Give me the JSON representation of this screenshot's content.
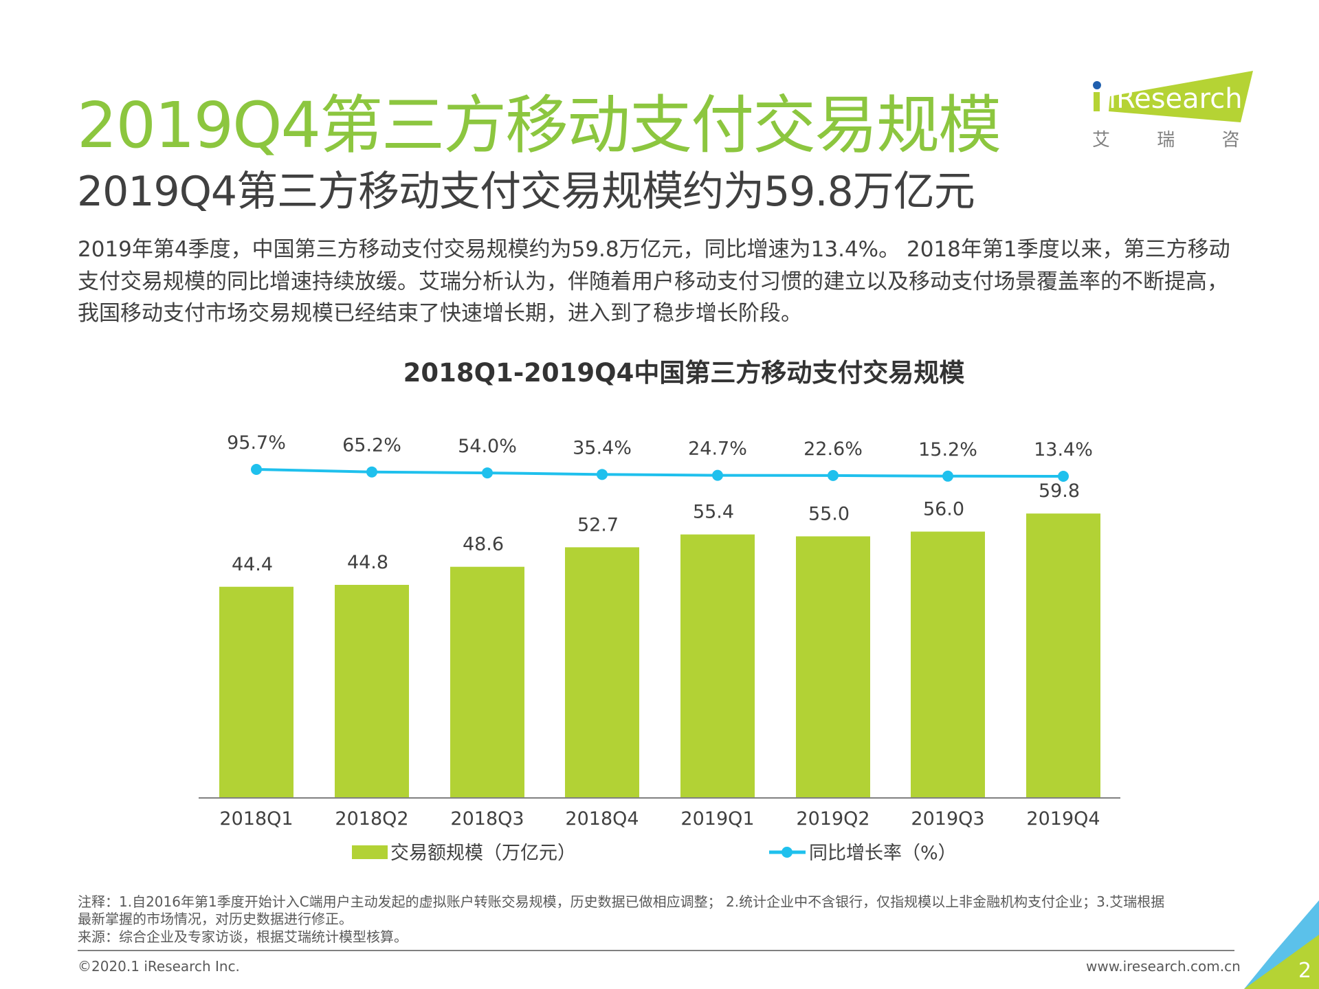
{
  "header": {
    "title": "2019Q4第三方移动支付交易规模",
    "subtitle": "2019Q4第三方移动支付交易规模约为59.8万亿元",
    "logo": {
      "brand": "iResearch",
      "cn": "艾 瑞 咨 询"
    }
  },
  "body": [
    "2019年第4季度，中国第三方移动支付交易规模约为59.8万亿元，同比增速为13.4%。 2018年第1季度以来，第三方移动",
    "支付交易规模的同比增速持续放缓。艾瑞分析认为，伴随着用户移动支付习惯的建立以及移动支付场景覆盖率的不断提高，",
    "我国移动支付市场交易规模已经结束了快速增长期，进入到了稳步增长阶段。"
  ],
  "chart_data": {
    "type": "bar",
    "title": "2018Q1-2019Q4中国第三方移动支付交易规模",
    "categories": [
      "2018Q1",
      "2018Q2",
      "2018Q3",
      "2018Q4",
      "2019Q1",
      "2019Q2",
      "2019Q3",
      "2019Q4"
    ],
    "series": [
      {
        "name": "交易额规模（万亿元）",
        "type": "bar",
        "values": [
          44.4,
          44.8,
          48.6,
          52.7,
          55.4,
          55.0,
          56.0,
          59.8
        ],
        "labels": [
          "44.4",
          "44.8",
          "48.6",
          "52.7",
          "55.4",
          "55.0",
          "56.0",
          "59.8"
        ],
        "color": "#b2d235"
      },
      {
        "name": "同比增长率（%）",
        "type": "line",
        "values": [
          95.7,
          65.2,
          54.0,
          35.4,
          24.7,
          22.6,
          15.2,
          13.4
        ],
        "labels": [
          "95.7%",
          "65.2%",
          "54.0%",
          "35.4%",
          "24.7%",
          "22.6%",
          "15.2%",
          "13.4%"
        ],
        "color": "#1fc0ed"
      }
    ],
    "legend": "bottom",
    "grid": false
  },
  "notes": [
    "注释：1.自2016年第1季度开始计入C端用户主动发起的虚拟账户转账交易规模，历史数据已做相应调整； 2.统计企业中不含银行，仅指规模以上非金融机构支付企业；3.艾瑞根据",
    "最新掌握的市场情况，对历史数据进行修正。",
    "来源：综合企业及专家访谈，根据艾瑞统计模型核算。"
  ],
  "footer": {
    "copyright": "©2020.1 iResearch Inc.",
    "website": "www.iresearch.com.cn",
    "page": "2"
  },
  "colors": {
    "title": "#8cc63f",
    "bar": "#b2d235",
    "line": "#1fc0ed"
  }
}
